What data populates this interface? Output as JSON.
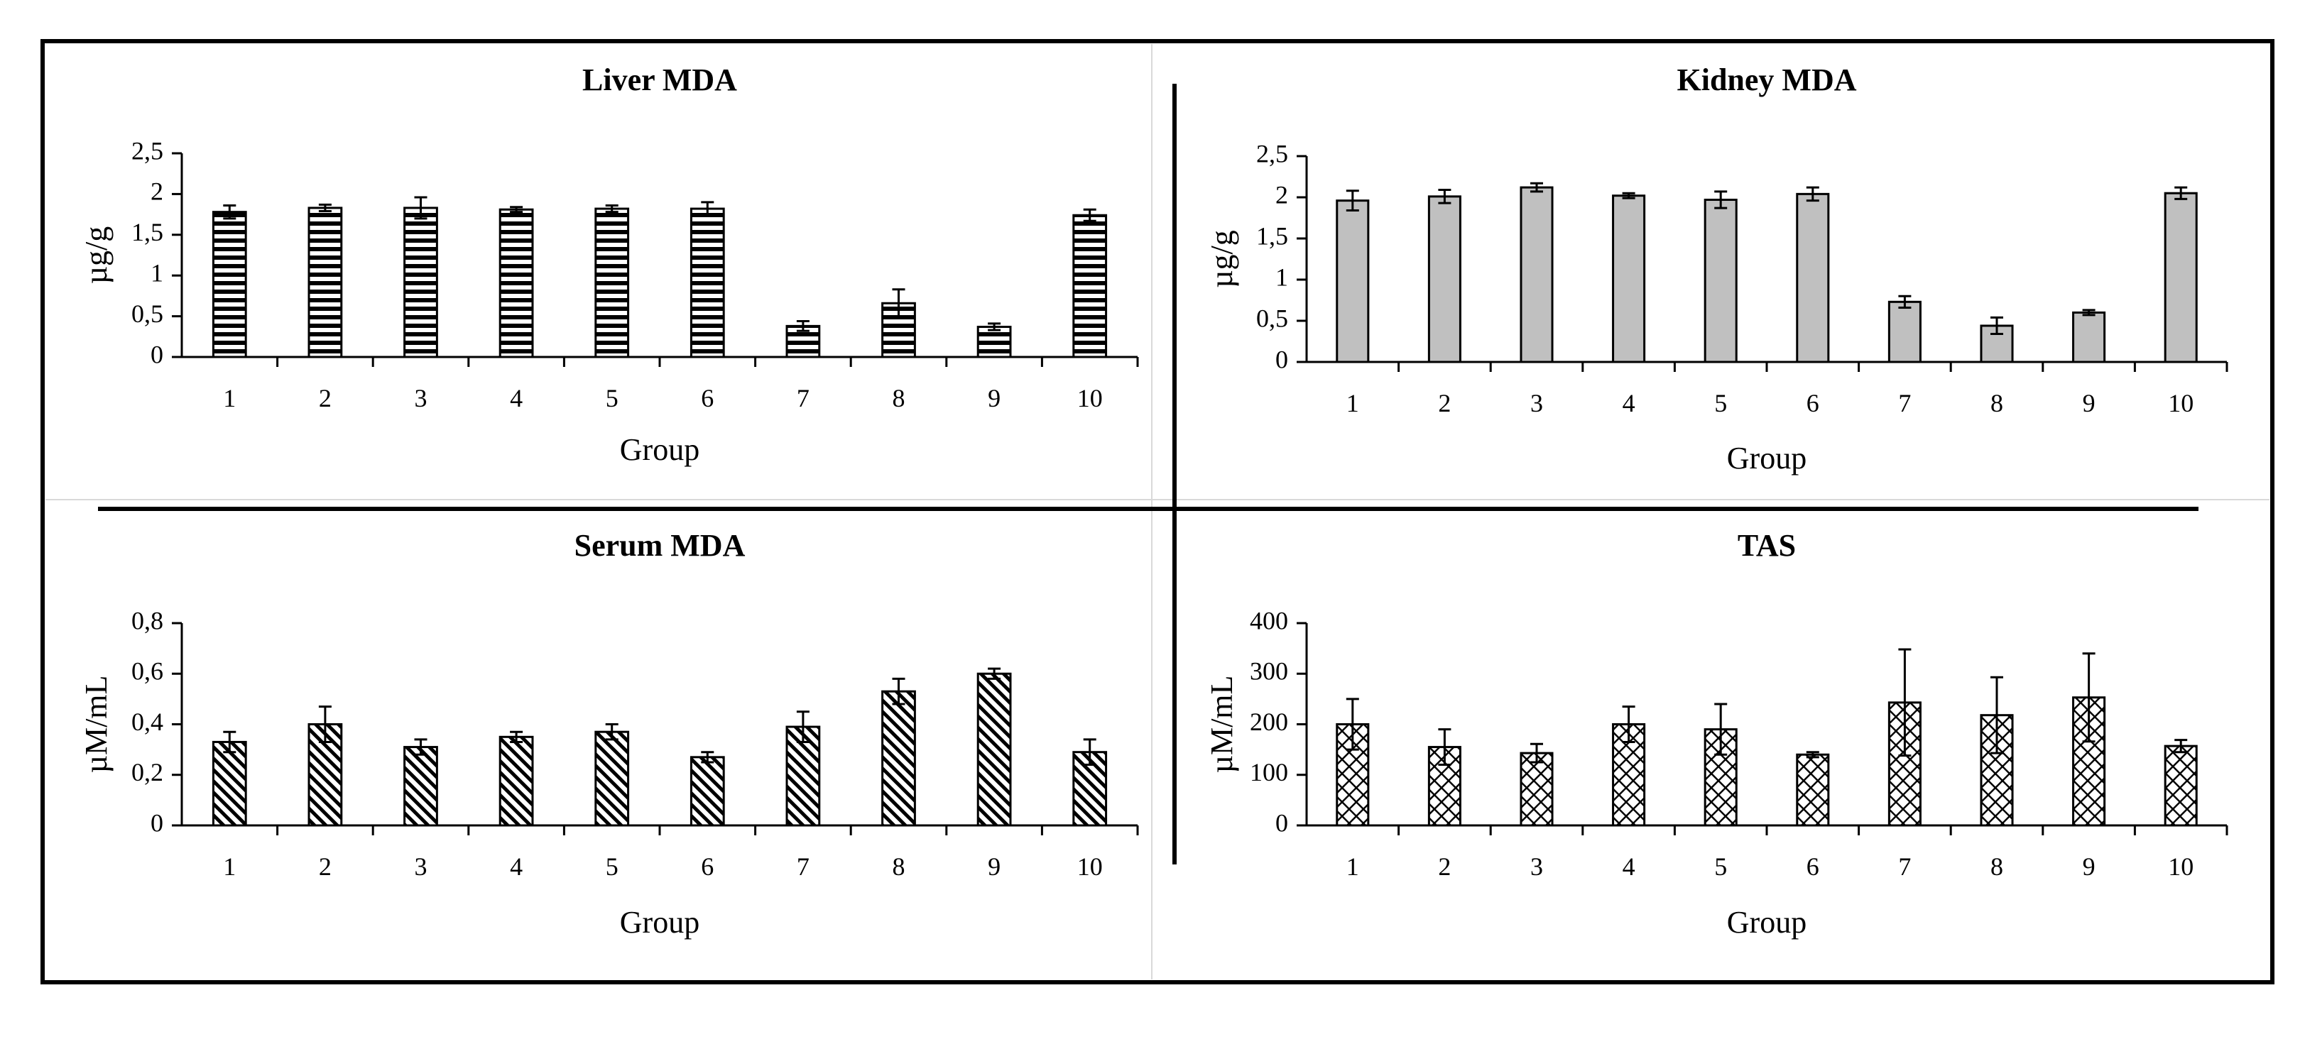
{
  "chart_data": [
    {
      "type": "bar",
      "title": "Liver MDA",
      "xlabel": "Group",
      "ylabel": "µg/g",
      "ylim": [
        0,
        2.5
      ],
      "yticks": [
        "0",
        "0,5",
        "1",
        "1,5",
        "2",
        "2,5"
      ],
      "categories": [
        "1",
        "2",
        "3",
        "4",
        "5",
        "6",
        "7",
        "8",
        "9",
        "10"
      ],
      "values": [
        1.78,
        1.83,
        1.83,
        1.81,
        1.82,
        1.82,
        0.38,
        0.66,
        0.37,
        1.74
      ],
      "errors": [
        0.08,
        0.04,
        0.13,
        0.03,
        0.04,
        0.08,
        0.06,
        0.17,
        0.04,
        0.07
      ],
      "fill": "horizontal-stripes"
    },
    {
      "type": "bar",
      "title": "Kidney MDA",
      "xlabel": "Group",
      "ylabel": "µg/g",
      "ylim": [
        0,
        2.5
      ],
      "yticks": [
        "0",
        "0,5",
        "1",
        "1,5",
        "2",
        "2,5"
      ],
      "categories": [
        "1",
        "2",
        "3",
        "4",
        "5",
        "6",
        "7",
        "8",
        "9",
        "10"
      ],
      "values": [
        1.96,
        2.01,
        2.12,
        2.02,
        1.97,
        2.04,
        0.73,
        0.44,
        0.6,
        2.05
      ],
      "errors": [
        0.12,
        0.08,
        0.05,
        0.03,
        0.1,
        0.08,
        0.07,
        0.1,
        0.03,
        0.07
      ],
      "fill": "solid-gray"
    },
    {
      "type": "bar",
      "title": "Serum MDA",
      "xlabel": "Group",
      "ylabel": "µM/mL",
      "ylim": [
        0,
        0.8
      ],
      "yticks": [
        "0",
        "0,2",
        "0,4",
        "0,6",
        "0,8"
      ],
      "categories": [
        "1",
        "2",
        "3",
        "4",
        "5",
        "6",
        "7",
        "8",
        "9",
        "10"
      ],
      "values": [
        0.33,
        0.4,
        0.31,
        0.35,
        0.37,
        0.27,
        0.39,
        0.53,
        0.6,
        0.29
      ],
      "errors": [
        0.04,
        0.07,
        0.03,
        0.02,
        0.03,
        0.02,
        0.06,
        0.05,
        0.02,
        0.05
      ],
      "fill": "diagonal-stripes"
    },
    {
      "type": "bar",
      "title": "TAS",
      "xlabel": "Group",
      "ylabel": "µM/mL",
      "ylim": [
        0,
        400
      ],
      "yticks": [
        "0",
        "100",
        "200",
        "300",
        "400"
      ],
      "categories": [
        "1",
        "2",
        "3",
        "4",
        "5",
        "6",
        "7",
        "8",
        "9",
        "10"
      ],
      "values": [
        200,
        155,
        143,
        200,
        190,
        140,
        243,
        218,
        253,
        157
      ],
      "errors": [
        50,
        35,
        18,
        35,
        50,
        5,
        105,
        75,
        87,
        12
      ],
      "fill": "crosshatch"
    }
  ],
  "colors": {
    "bar_gray": "#c0c0c0",
    "ink": "#000000",
    "panel_border": "#d9d9d9"
  }
}
